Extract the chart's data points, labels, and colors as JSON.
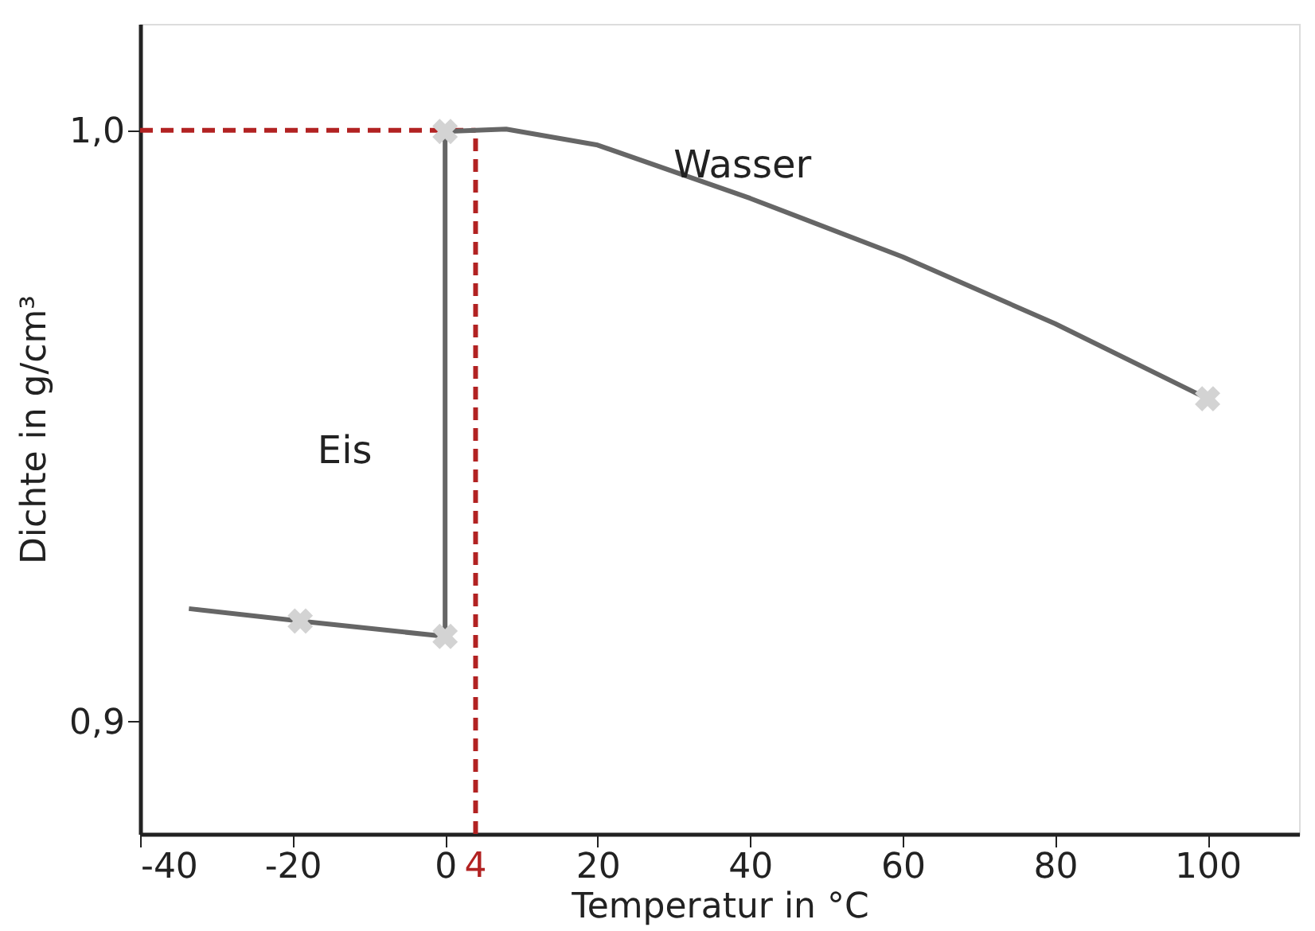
{
  "chart_data": {
    "type": "line",
    "xlabel": "Temperatur in °C",
    "ylabel": "Dichte in g/cm³",
    "xlim": [
      -40,
      112
    ],
    "ylim": [
      0.881,
      1.018
    ],
    "xticks": [
      -40,
      -20,
      0,
      20,
      40,
      60,
      80,
      100
    ],
    "yticks": [
      {
        "value": 0.9,
        "label": "0,9"
      },
      {
        "value": 1.0,
        "label": "1,0"
      }
    ],
    "grid": false,
    "series": [
      {
        "name": "Eis",
        "color": "#666666",
        "x": [
          -33.6,
          -19,
          0,
          0
        ],
        "values": [
          0.9191,
          0.917,
          0.9144,
          0.9998
        ]
      },
      {
        "name": "Wasser",
        "color": "#666666",
        "x": [
          0,
          4,
          8,
          20,
          40,
          60,
          80,
          100
        ],
        "values": [
          0.9998,
          1.0,
          1.0002,
          0.9975,
          0.9885,
          0.9786,
          0.9673,
          0.9546
        ]
      },
      {
        "type": "scatter",
        "marker": "cross",
        "color": "#d3d3d3",
        "x": [
          -19,
          0,
          0,
          100
        ],
        "values": [
          0.917,
          0.9144,
          0.9998,
          0.9546
        ]
      }
    ],
    "ref_lines": [
      {
        "axis": "y",
        "value": 1.0,
        "color": "#b22222",
        "line_style": "dashed"
      },
      {
        "axis": "x",
        "value": 4,
        "label": "4",
        "color": "#b22222",
        "line_style": "dashed"
      }
    ]
  }
}
